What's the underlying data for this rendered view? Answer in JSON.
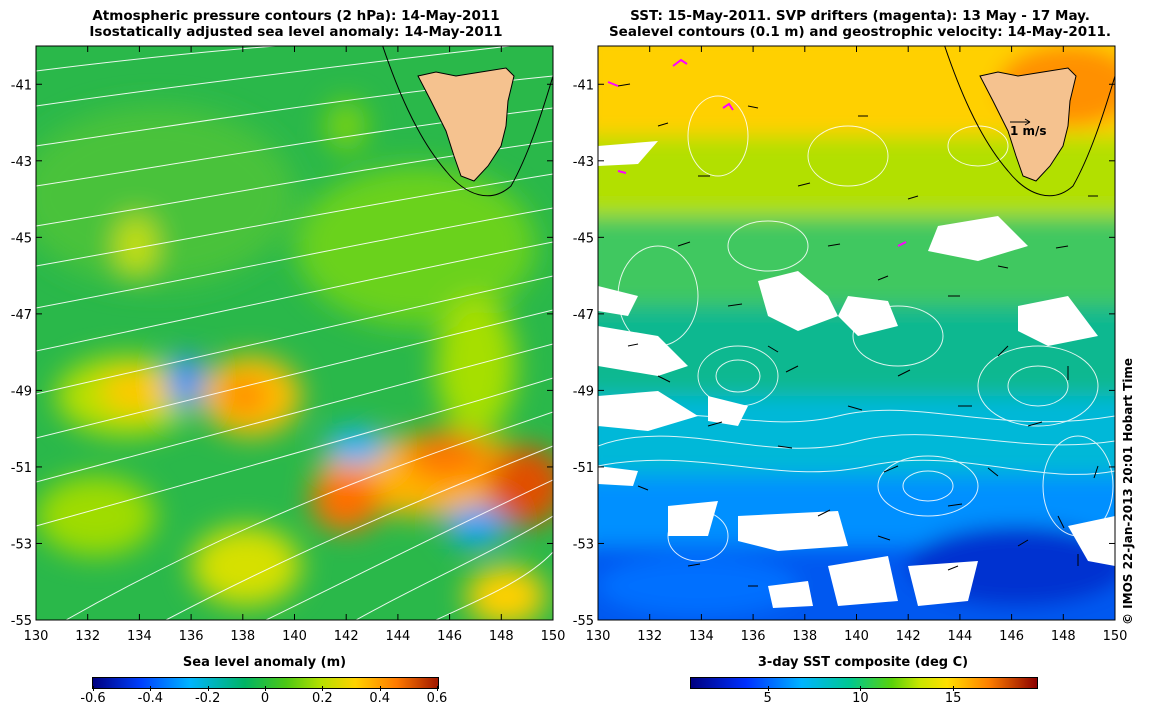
{
  "left_panel": {
    "title_line1": "Atmospheric pressure contours (2 hPa): 14-May-2011",
    "title_line2": "Isostatically adjusted sea level anomaly: 14-May-2011",
    "colorbar_label": "Sea level anomaly (m)",
    "colorbar_ticks": [
      "-0.6",
      "-0.4",
      "-0.2",
      "0",
      "0.2",
      "0.4",
      "0.6"
    ]
  },
  "right_panel": {
    "title_line1": "SST: 15-May-2011. SVP drifters (magenta): 13 May - 17 May.",
    "title_line2": "Sealevel contours (0.1 m) and geostrophic velocity: 14-May-2011.",
    "colorbar_label": "3-day SST composite (deg C)",
    "colorbar_ticks": [
      "5",
      "10",
      "15"
    ],
    "scale_label": "1 m/s"
  },
  "axes": {
    "lon_ticks": [
      "130",
      "132",
      "134",
      "136",
      "138",
      "140",
      "142",
      "144",
      "146",
      "148",
      "150"
    ],
    "lat_ticks": [
      "-41",
      "-43",
      "-45",
      "-47",
      "-49",
      "-51",
      "-53",
      "-55"
    ]
  },
  "credit": "© IMOS 22-Jan-2013 20:01 Hobart Time",
  "colors": {
    "land": "#f5c28f",
    "sla_scale": [
      "#00007f",
      "#0050ff",
      "#00c8ff",
      "#00b050",
      "#64d20a",
      "#ffd200",
      "#ff7a00",
      "#a01800"
    ],
    "sst_scale": [
      "#00007f",
      "#0030ff",
      "#00b4ff",
      "#00c890",
      "#58d20a",
      "#ffe000",
      "#ff8000",
      "#8b0000"
    ],
    "drifter": "#ff00ff"
  }
}
